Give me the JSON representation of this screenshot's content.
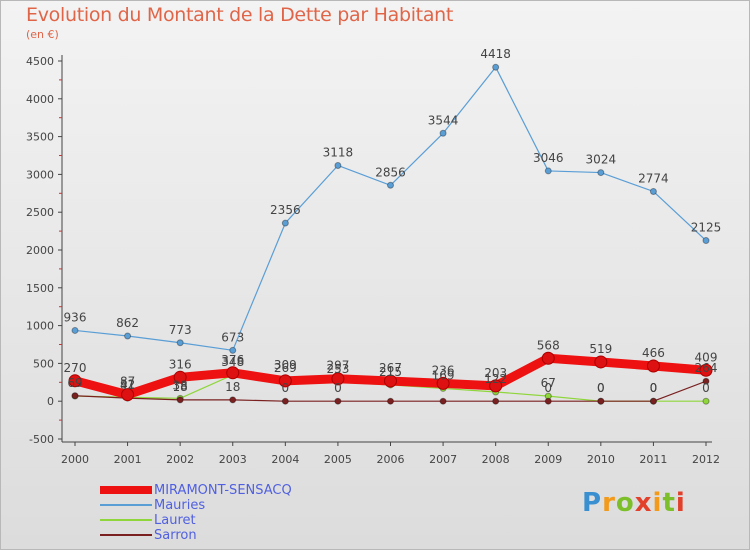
{
  "chart_data": {
    "type": "line",
    "title": "Evolution du Montant de la Dette par Habitant",
    "subtitle": "(en €)",
    "x": [
      "2000",
      "2001",
      "2002",
      "2003",
      "2004",
      "2005",
      "2006",
      "2007",
      "2008",
      "2009",
      "2010",
      "2011",
      "2012"
    ],
    "ylim": [
      -500,
      4500
    ],
    "yticks": [
      -500,
      0,
      500,
      1000,
      1500,
      2000,
      2500,
      3000,
      3500,
      4000,
      4500
    ],
    "grid": false,
    "legend_position": "bottom-left",
    "series": [
      {
        "name": "MIRAMONT-SENSACQ",
        "color": "#ee1111",
        "width": 9,
        "values": [
          270,
          87,
          316,
          376,
          269,
          297,
          267,
          236,
          203,
          568,
          519,
          466,
          409
        ],
        "show_labels": true
      },
      {
        "name": "Mauries",
        "color": "#5a9ed6",
        "width": 1.2,
        "values": [
          936,
          862,
          773,
          673,
          2356,
          3118,
          2856,
          3544,
          4418,
          3046,
          3024,
          2774,
          2125
        ],
        "show_labels": true
      },
      {
        "name": "Lauret",
        "color": "#8ed63a",
        "width": 1.2,
        "values": [
          69,
          52,
          38,
          348,
          309,
          253,
          215,
          169,
          122,
          67,
          0,
          0,
          0
        ],
        "show_labels": false
      },
      {
        "name": "Sarron",
        "color": "#7a2020",
        "width": 1.2,
        "values": [
          72,
          41,
          18,
          18,
          0,
          0,
          0,
          0,
          0,
          0,
          0,
          0,
          264
        ],
        "show_labels": false
      }
    ],
    "annotations": [
      {
        "x": "2000",
        "y": 69,
        "text": "69"
      },
      {
        "x": "2001",
        "y": 52,
        "text": "52"
      },
      {
        "x": "2001",
        "y": 41,
        "text": "41"
      },
      {
        "x": "2002",
        "y": 38,
        "text": "38"
      },
      {
        "x": "2002",
        "y": 18,
        "text": "18"
      },
      {
        "x": "2003",
        "y": 348,
        "text": "348"
      },
      {
        "x": "2003",
        "y": 18,
        "text": "18"
      },
      {
        "x": "2004",
        "y": 309,
        "text": "309"
      },
      {
        "x": "2004",
        "y": 0,
        "text": "0"
      },
      {
        "x": "2005",
        "y": 253,
        "text": "253"
      },
      {
        "x": "2005",
        "y": 0,
        "text": "0"
      },
      {
        "x": "2006",
        "y": 215,
        "text": "215"
      },
      {
        "x": "2007",
        "y": 169,
        "text": "169"
      },
      {
        "x": "2008",
        "y": 122,
        "text": "122"
      },
      {
        "x": "2009",
        "y": 67,
        "text": "67"
      },
      {
        "x": "2009",
        "y": 0,
        "text": "0"
      },
      {
        "x": "2010",
        "y": 0,
        "text": "0"
      },
      {
        "x": "2010",
        "y": 0,
        "text": "0"
      },
      {
        "x": "2011",
        "y": 0,
        "text": "0"
      },
      {
        "x": "2011",
        "y": 0,
        "text": "0"
      },
      {
        "x": "2012",
        "y": 264,
        "text": "264"
      },
      {
        "x": "2012",
        "y": 0,
        "text": "0"
      }
    ]
  },
  "logo": {
    "text": "Proxiti"
  }
}
